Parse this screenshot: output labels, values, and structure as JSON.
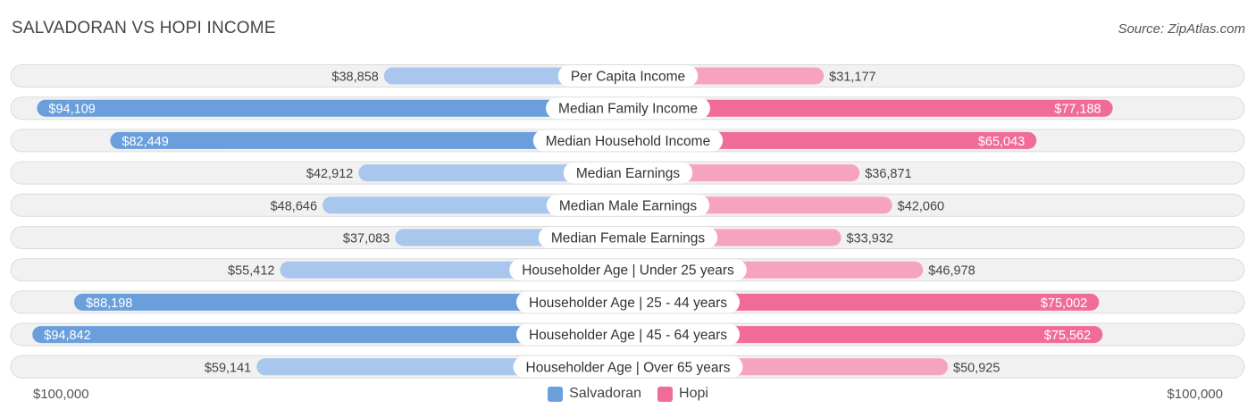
{
  "header": {
    "title": "SALVADORAN VS HOPI INCOME",
    "source": "Source: ZipAtlas.com"
  },
  "axis": {
    "left_label": "$100,000",
    "right_label": "$100,000"
  },
  "legend": {
    "left_series": "Salvadoran",
    "right_series": "Hopi"
  },
  "colors": {
    "left_strong": "#6a9fdc",
    "left_light": "#a9c7ec",
    "right_strong": "#f06c97",
    "right_light": "#f6a3bf",
    "track": "#f1f1f1",
    "track_border": "#dcdcdc"
  },
  "chart_data": {
    "type": "bar",
    "orientation": "horizontal-diverging",
    "xlim": [
      0,
      100000
    ],
    "categories": [
      "Per Capita Income",
      "Median Family Income",
      "Median Household Income",
      "Median Earnings",
      "Median Male Earnings",
      "Median Female Earnings",
      "Householder Age | Under 25 years",
      "Householder Age | 25 - 44 years",
      "Householder Age | 45 - 64 years",
      "Householder Age | Over 65 years"
    ],
    "series": [
      {
        "name": "Salvadoran",
        "values": [
          38858,
          94109,
          82449,
          42912,
          48646,
          37083,
          55412,
          88198,
          94842,
          59141
        ],
        "labels": [
          "$38,858",
          "$94,109",
          "$82,449",
          "$42,912",
          "$48,646",
          "$37,083",
          "$55,412",
          "$88,198",
          "$94,842",
          "$59,141"
        ]
      },
      {
        "name": "Hopi",
        "values": [
          31177,
          77188,
          65043,
          36871,
          42060,
          33932,
          46978,
          75002,
          75562,
          50925
        ],
        "labels": [
          "$31,177",
          "$77,188",
          "$65,043",
          "$36,871",
          "$42,060",
          "$33,932",
          "$46,978",
          "$75,002",
          "$75,562",
          "$50,925"
        ]
      }
    ]
  }
}
